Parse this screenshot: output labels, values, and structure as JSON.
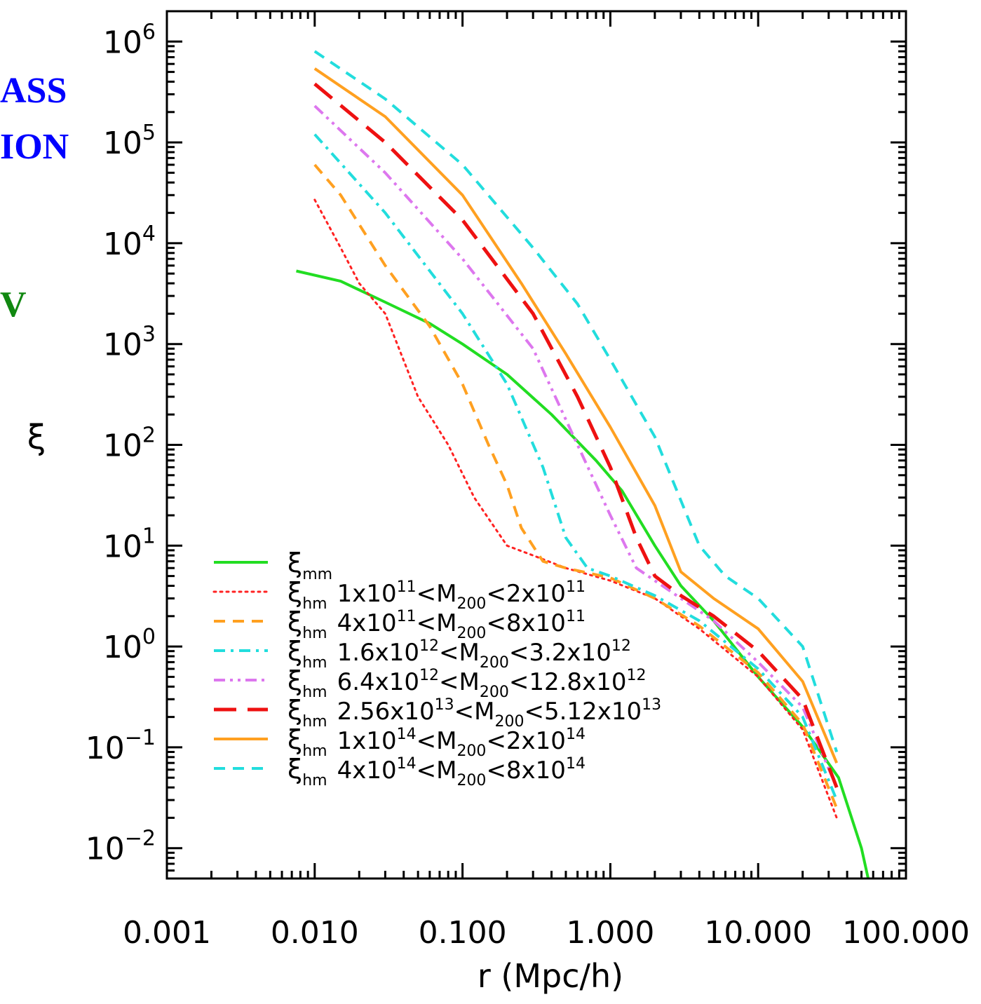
{
  "side_text": {
    "line1": "ASS",
    "line2": "ION",
    "line3": "V"
  },
  "colors": {
    "side_blue": "#0000ff",
    "side_green": "#118811",
    "xi_mm": "#22dd22",
    "red_dotted": "#ff2222",
    "orange": "#ffa020",
    "cyan": "#22dddd",
    "violet": "#dd77ee",
    "red": "#ee1111"
  },
  "chart_data": {
    "type": "line",
    "xscale": "log",
    "yscale": "log",
    "xlim": [
      0.001,
      100
    ],
    "ylim": [
      0.005,
      2000000
    ],
    "xlabel": "r  (Mpc/h)",
    "ylabel": "ξ",
    "xticks": [
      {
        "value": 0.001,
        "label": "0.001"
      },
      {
        "value": 0.01,
        "label": "0.010"
      },
      {
        "value": 0.1,
        "label": "0.100"
      },
      {
        "value": 1,
        "label": "1.000"
      },
      {
        "value": 10,
        "label": "10.000"
      },
      {
        "value": 100,
        "label": "100.000"
      }
    ],
    "yticks": [
      {
        "exp": 6,
        "base": "10",
        "sup": "6"
      },
      {
        "exp": 5,
        "base": "10",
        "sup": "5"
      },
      {
        "exp": 4,
        "base": "10",
        "sup": "4"
      },
      {
        "exp": 3,
        "base": "10",
        "sup": "3"
      },
      {
        "exp": 2,
        "base": "10",
        "sup": "2"
      },
      {
        "exp": 1,
        "base": "10",
        "sup": "1"
      },
      {
        "exp": 0,
        "base": "10",
        "sup": "0"
      },
      {
        "exp": -1,
        "base": "10",
        "sup": "−1"
      },
      {
        "exp": -2,
        "base": "10",
        "sup": "−2"
      }
    ],
    "legend_position": "bottom-left",
    "series": [
      {
        "label_sym": "ξ",
        "label_sub": "mm",
        "label_rest": [],
        "color": "#22dd22",
        "dash": "solid",
        "width": 4,
        "points": [
          [
            0.0075,
            5300
          ],
          [
            0.015,
            4200
          ],
          [
            0.03,
            2600
          ],
          [
            0.06,
            1600
          ],
          [
            0.1,
            1000
          ],
          [
            0.2,
            500
          ],
          [
            0.4,
            200
          ],
          [
            0.8,
            70
          ],
          [
            1.2,
            35
          ],
          [
            2,
            10
          ],
          [
            3,
            4
          ],
          [
            5,
            1.8
          ],
          [
            10,
            0.5
          ],
          [
            20,
            0.16
          ],
          [
            35,
            0.05
          ],
          [
            50,
            0.01
          ],
          [
            60,
            0.003
          ]
        ]
      },
      {
        "label_sym": "ξ",
        "label_sub": "hm",
        "label_rest": [
          [
            "1x10",
            ""
          ],
          [
            "11",
            "sup"
          ],
          [
            "<M",
            ""
          ],
          [
            "200",
            "sub"
          ],
          [
            "<2x10",
            ""
          ],
          [
            "11",
            "sup"
          ]
        ],
        "color": "#ff2222",
        "dash": "dotted",
        "width": 3,
        "points": [
          [
            0.01,
            27000
          ],
          [
            0.015,
            9000
          ],
          [
            0.02,
            4000
          ],
          [
            0.03,
            2000
          ],
          [
            0.05,
            300
          ],
          [
            0.08,
            100
          ],
          [
            0.12,
            30
          ],
          [
            0.2,
            10
          ],
          [
            0.3,
            8
          ],
          [
            0.5,
            6
          ],
          [
            1,
            4.5
          ],
          [
            2,
            3
          ],
          [
            4,
            1.5
          ],
          [
            10,
            0.5
          ],
          [
            20,
            0.15
          ],
          [
            34,
            0.02
          ]
        ]
      },
      {
        "label_sym": "ξ",
        "label_sub": "hm",
        "label_rest": [
          [
            "4x10",
            ""
          ],
          [
            "11",
            "sup"
          ],
          [
            "<M",
            ""
          ],
          [
            "200",
            "sub"
          ],
          [
            "<8x10",
            ""
          ],
          [
            "11",
            "sup"
          ]
        ],
        "color": "#ffa020",
        "dash": "dashed",
        "width": 4,
        "points": [
          [
            0.01,
            60000
          ],
          [
            0.015,
            30000
          ],
          [
            0.03,
            6000
          ],
          [
            0.06,
            1500
          ],
          [
            0.1,
            400
          ],
          [
            0.15,
            100
          ],
          [
            0.2,
            40
          ],
          [
            0.25,
            15
          ],
          [
            0.35,
            7
          ],
          [
            0.5,
            6
          ],
          [
            1,
            4.8
          ],
          [
            2,
            3
          ],
          [
            4,
            1.6
          ],
          [
            10,
            0.55
          ],
          [
            20,
            0.17
          ],
          [
            34,
            0.025
          ]
        ]
      },
      {
        "label_sym": "ξ",
        "label_sub": "hm",
        "label_rest": [
          [
            "1.6x10",
            ""
          ],
          [
            "12",
            "sup"
          ],
          [
            "<M",
            ""
          ],
          [
            "200",
            "sub"
          ],
          [
            "<3.2x10",
            ""
          ],
          [
            "12",
            "sup"
          ]
        ],
        "color": "#22dddd",
        "dash": "dashdot",
        "width": 4,
        "points": [
          [
            0.01,
            120000
          ],
          [
            0.03,
            20000
          ],
          [
            0.1,
            2000
          ],
          [
            0.2,
            400
          ],
          [
            0.35,
            60
          ],
          [
            0.5,
            12
          ],
          [
            0.7,
            6
          ],
          [
            1,
            5
          ],
          [
            2,
            3.2
          ],
          [
            4,
            1.8
          ],
          [
            10,
            0.6
          ],
          [
            20,
            0.2
          ],
          [
            34,
            0.03
          ]
        ]
      },
      {
        "label_sym": "ξ",
        "label_sub": "hm",
        "label_rest": [
          [
            "6.4x10",
            ""
          ],
          [
            "12",
            "sup"
          ],
          [
            "<M",
            ""
          ],
          [
            "200",
            "sub"
          ],
          [
            "<12.8x10",
            ""
          ],
          [
            "12",
            "sup"
          ]
        ],
        "color": "#dd77ee",
        "dash": "dashdotdot",
        "width": 4,
        "points": [
          [
            0.01,
            230000
          ],
          [
            0.03,
            50000
          ],
          [
            0.1,
            7000
          ],
          [
            0.3,
            900
          ],
          [
            0.6,
            100
          ],
          [
            1,
            20
          ],
          [
            1.5,
            6
          ],
          [
            3,
            3
          ],
          [
            5,
            1.8
          ],
          [
            10,
            0.7
          ],
          [
            20,
            0.25
          ],
          [
            34,
            0.04
          ]
        ]
      },
      {
        "label_sym": "ξ",
        "label_sub": "hm",
        "label_rest": [
          [
            "2.56x10",
            ""
          ],
          [
            "13",
            "sup"
          ],
          [
            "<M",
            ""
          ],
          [
            "200",
            "sub"
          ],
          [
            "<5.12x10",
            ""
          ],
          [
            "13",
            "sup"
          ]
        ],
        "color": "#ee1111",
        "dash": "longdash",
        "width": 5,
        "points": [
          [
            0.01,
            380000
          ],
          [
            0.03,
            100000
          ],
          [
            0.1,
            17000
          ],
          [
            0.3,
            2000
          ],
          [
            0.6,
            300
          ],
          [
            1,
            60
          ],
          [
            1.5,
            12
          ],
          [
            2,
            5
          ],
          [
            3,
            3.2
          ],
          [
            5,
            2
          ],
          [
            10,
            0.9
          ],
          [
            20,
            0.3
          ],
          [
            34,
            0.04
          ]
        ]
      },
      {
        "label_sym": "ξ",
        "label_sub": "hm",
        "label_rest": [
          [
            "1x10",
            ""
          ],
          [
            "14",
            "sup"
          ],
          [
            "<M",
            ""
          ],
          [
            "200",
            "sub"
          ],
          [
            "<2x10",
            ""
          ],
          [
            "14",
            "sup"
          ]
        ],
        "color": "#ffa020",
        "dash": "solid",
        "width": 4,
        "points": [
          [
            0.01,
            540000
          ],
          [
            0.03,
            180000
          ],
          [
            0.1,
            30000
          ],
          [
            0.25,
            4000
          ],
          [
            0.5,
            800
          ],
          [
            1,
            150
          ],
          [
            2,
            25
          ],
          [
            3,
            5.5
          ],
          [
            5,
            3
          ],
          [
            10,
            1.5
          ],
          [
            20,
            0.45
          ],
          [
            34,
            0.07
          ]
        ]
      },
      {
        "label_sym": "ξ",
        "label_sub": "hm",
        "label_rest": [
          [
            "4x10",
            ""
          ],
          [
            "14",
            "sup"
          ],
          [
            "<M",
            ""
          ],
          [
            "200",
            "sub"
          ],
          [
            "<8x10",
            ""
          ],
          [
            "14",
            "sup"
          ]
        ],
        "color": "#22dddd",
        "dash": "dashed",
        "width": 4,
        "points": [
          [
            0.01,
            800000
          ],
          [
            0.03,
            270000
          ],
          [
            0.1,
            60000
          ],
          [
            0.3,
            9000
          ],
          [
            0.6,
            2500
          ],
          [
            1,
            700
          ],
          [
            2,
            120
          ],
          [
            4,
            10
          ],
          [
            6,
            5
          ],
          [
            10,
            3
          ],
          [
            20,
            1
          ],
          [
            34,
            0.09
          ]
        ]
      }
    ]
  }
}
